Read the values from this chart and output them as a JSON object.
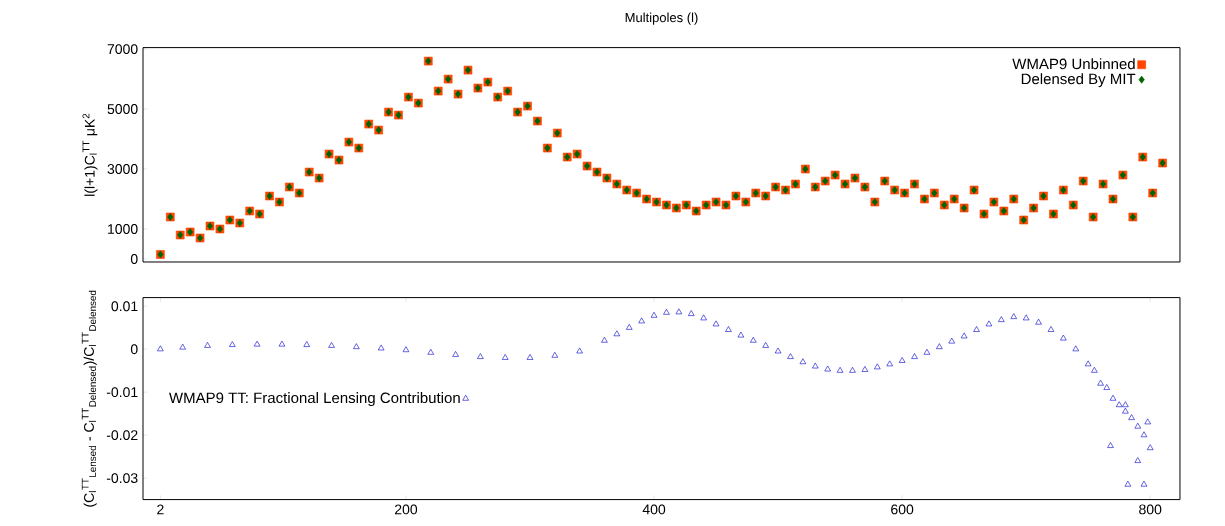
{
  "chart_data": [
    {
      "type": "scatter",
      "title": "Multipoles (l)",
      "ylabel": "l(l+1)C$_{l}$$^{TT}$ μK$^{2}$",
      "xlim": [
        -12,
        824
      ],
      "ylim": [
        -100,
        7050
      ],
      "yticks": [
        0,
        1000,
        3000,
        5000,
        7000
      ],
      "tick_labels": "y",
      "legend": "top right",
      "x": [
        2,
        10,
        18,
        26,
        34,
        42,
        50,
        58,
        66,
        74,
        82,
        90,
        98,
        106,
        114,
        122,
        130,
        138,
        146,
        154,
        162,
        170,
        178,
        186,
        194,
        202,
        210,
        218,
        226,
        234,
        242,
        250,
        258,
        266,
        274,
        282,
        290,
        298,
        306,
        314,
        322,
        330,
        338,
        346,
        354,
        362,
        370,
        378,
        386,
        394,
        402,
        410,
        418,
        426,
        434,
        442,
        450,
        458,
        466,
        474,
        482,
        490,
        498,
        506,
        514,
        522,
        530,
        538,
        546,
        554,
        562,
        570,
        578,
        586,
        594,
        602,
        610,
        618,
        626,
        634,
        642,
        650,
        658,
        666,
        674,
        682,
        690,
        698,
        706,
        714,
        722,
        730,
        738,
        746,
        754,
        762,
        770,
        778,
        786,
        794,
        802,
        810
      ],
      "series": [
        {
          "name": "WMAP9 Unbinned",
          "color": "#ff4500",
          "marker": "square",
          "values": [
            150,
            1400,
            800,
            900,
            700,
            1100,
            1000,
            1300,
            1200,
            1600,
            1500,
            2100,
            1900,
            2400,
            2200,
            2900,
            2700,
            3500,
            3300,
            3900,
            3700,
            4500,
            4300,
            4900,
            4800,
            5400,
            5200,
            6600,
            5600,
            6000,
            5500,
            6300,
            5700,
            5900,
            5400,
            5600,
            4900,
            5100,
            4600,
            3700,
            4200,
            3400,
            3500,
            3100,
            2900,
            2700,
            2500,
            2300,
            2200,
            2000,
            1900,
            1800,
            1700,
            1800,
            1600,
            1800,
            1900,
            1800,
            2100,
            1900,
            2200,
            2100,
            2400,
            2300,
            2500,
            3000,
            2400,
            2600,
            2800,
            2500,
            2700,
            2400,
            1900,
            2600,
            2300,
            2200,
            2500,
            2000,
            2200,
            1800,
            2000,
            1700,
            2300,
            1500,
            1900,
            1600,
            2000,
            1300,
            1700,
            2100,
            1500,
            2300,
            1800,
            2600,
            1400,
            2500,
            2000,
            2800,
            1400,
            3400,
            2200,
            3200
          ]
        },
        {
          "name": "Delensed By MIT",
          "color": "#006400",
          "marker": "diamond",
          "values": [
            150,
            1400,
            800,
            900,
            700,
            1100,
            1000,
            1300,
            1200,
            1600,
            1500,
            2100,
            1900,
            2400,
            2200,
            2900,
            2700,
            3500,
            3300,
            3900,
            3700,
            4500,
            4300,
            4900,
            4800,
            5400,
            5200,
            6600,
            5600,
            6000,
            5500,
            6300,
            5700,
            5900,
            5400,
            5600,
            4900,
            5100,
            4600,
            3700,
            4200,
            3400,
            3500,
            3100,
            2900,
            2700,
            2500,
            2300,
            2200,
            2000,
            1900,
            1800,
            1700,
            1800,
            1600,
            1800,
            1900,
            1800,
            2100,
            1900,
            2200,
            2100,
            2400,
            2300,
            2500,
            3000,
            2400,
            2600,
            2800,
            2500,
            2700,
            2400,
            1900,
            2600,
            2300,
            2200,
            2500,
            2000,
            2200,
            1800,
            2000,
            1700,
            2300,
            1500,
            1900,
            1600,
            2000,
            1300,
            1700,
            2100,
            1500,
            2300,
            1800,
            2600,
            1400,
            2500,
            2000,
            2800,
            1400,
            3400,
            2200,
            3200
          ]
        }
      ]
    },
    {
      "type": "scatter",
      "ylabel": "(C$_{l}$$^{TT}$$_{Lensed}$ - C$_{l}$$^{TT}$$_{Delensed}$)/C$_{l}$$^{TT}$$_{Delensed}$",
      "xlim": [
        -12,
        824
      ],
      "ylim": [
        -0.035,
        0.012
      ],
      "xticks": [
        2,
        200,
        400,
        600,
        800
      ],
      "yticks": [
        -0.03,
        -0.02,
        -0.01,
        0,
        0.01
      ],
      "legend": "left",
      "x": [
        2,
        20,
        40,
        60,
        80,
        100,
        120,
        140,
        160,
        180,
        200,
        220,
        240,
        260,
        280,
        300,
        320,
        340,
        360,
        370,
        380,
        390,
        400,
        410,
        420,
        430,
        440,
        450,
        460,
        470,
        480,
        490,
        500,
        510,
        520,
        530,
        540,
        550,
        560,
        570,
        580,
        590,
        600,
        610,
        620,
        630,
        640,
        650,
        660,
        670,
        680,
        690,
        700,
        710,
        720,
        730,
        740,
        750,
        755,
        760,
        765,
        770,
        775,
        780,
        785,
        790,
        795,
        800,
        768,
        782,
        795,
        790,
        780,
        798
      ],
      "series": [
        {
          "name": "WMAP9 TT: Fractional Lensing Contribution",
          "color": "#0000cc",
          "marker": "triangle",
          "values": [
            0,
            0.0004,
            0.0008,
            0.001,
            0.0011,
            0.0011,
            0.001,
            0.0008,
            0.0005,
            0.0002,
            -0.0002,
            -0.0008,
            -0.0013,
            -0.0018,
            -0.002,
            -0.002,
            -0.0015,
            -0.0005,
            0.002,
            0.0035,
            0.005,
            0.0065,
            0.0078,
            0.0085,
            0.0086,
            0.0082,
            0.0072,
            0.0058,
            0.0045,
            0.0032,
            0.002,
            0.0008,
            -0.0005,
            -0.0018,
            -0.003,
            -0.004,
            -0.0047,
            -0.005,
            -0.005,
            -0.0048,
            -0.0042,
            -0.0035,
            -0.0027,
            -0.0018,
            -0.0008,
            0.0005,
            0.0018,
            0.003,
            0.0045,
            0.0058,
            0.0068,
            0.0075,
            0.0072,
            0.0062,
            0.0045,
            0.0025,
            0.0,
            -0.0035,
            -0.005,
            -0.008,
            -0.009,
            -0.0115,
            -0.013,
            -0.0145,
            -0.016,
            -0.018,
            -0.02,
            -0.023,
            -0.0225,
            -0.0315,
            -0.0315,
            -0.026,
            -0.013,
            -0.017
          ]
        }
      ]
    }
  ]
}
